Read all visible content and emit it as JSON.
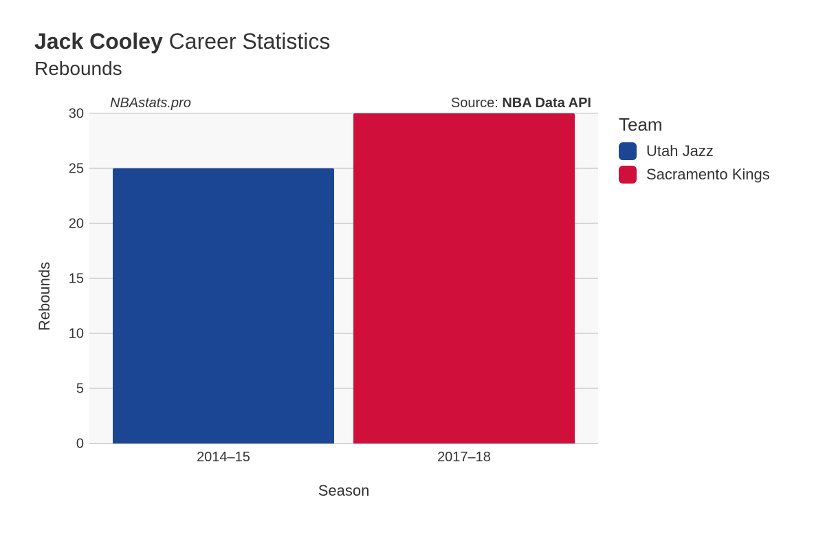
{
  "title": {
    "bold": "Jack Cooley",
    "rest": "Career Statistics",
    "subtitle": "Rebounds"
  },
  "annotations": {
    "left": "NBAstats.pro",
    "right_prefix": "Source: ",
    "right_bold": "NBA Data API"
  },
  "chart": {
    "type": "bar",
    "background_color": "#f8f8f8",
    "grid_color": "#666666",
    "axis_text_color": "#333333",
    "categories": [
      "2014–15",
      "2017–18"
    ],
    "values": [
      25,
      30
    ],
    "bar_colors": [
      "#1b4694",
      "#d0103a"
    ],
    "ylim": [
      0,
      30
    ],
    "ytick_step": 5,
    "yticks": [
      0,
      5,
      10,
      15,
      20,
      25,
      30
    ],
    "xlabel": "Season",
    "ylabel": "Rebounds",
    "bar_width": 0.92,
    "title_fontsize": 32,
    "subtitle_fontsize": 28,
    "axis_label_fontsize": 22,
    "tick_fontsize": 20,
    "annotation_fontsize": 20
  },
  "legend": {
    "title": "Team",
    "items": [
      {
        "label": "Utah Jazz",
        "color": "#1b4694"
      },
      {
        "label": "Sacramento Kings",
        "color": "#d0103a"
      }
    ],
    "title_fontsize": 26,
    "item_fontsize": 22
  }
}
